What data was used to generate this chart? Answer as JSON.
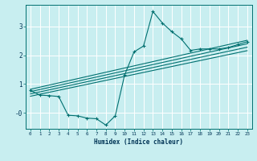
{
  "xlabel": "Humidex (Indice chaleur)",
  "bg_color": "#c8eef0",
  "line_color": "#007070",
  "grid_color": "#ffffff",
  "xlim": [
    -0.5,
    23.5
  ],
  "ylim": [
    -0.55,
    3.75
  ],
  "yticks": [
    0,
    1,
    2,
    3
  ],
  "ytick_labels": [
    "-0",
    "1",
    "2",
    "3"
  ],
  "xticks": [
    0,
    1,
    2,
    3,
    4,
    5,
    6,
    7,
    8,
    9,
    10,
    11,
    12,
    13,
    14,
    15,
    16,
    17,
    18,
    19,
    20,
    21,
    22,
    23
  ],
  "curve_x": [
    0,
    1,
    2,
    3,
    4,
    5,
    6,
    7,
    8,
    9,
    10,
    11,
    12,
    13,
    14,
    15,
    16,
    17,
    18,
    19,
    20,
    21,
    22,
    23
  ],
  "curve_y": [
    0.78,
    0.62,
    0.6,
    0.57,
    -0.08,
    -0.1,
    -0.18,
    -0.2,
    -0.42,
    -0.1,
    1.32,
    2.12,
    2.32,
    3.52,
    3.12,
    2.82,
    2.57,
    2.17,
    2.22,
    2.22,
    2.22,
    2.27,
    2.37,
    2.47
  ],
  "lines": [
    {
      "x": [
        0,
        23
      ],
      "y": [
        0.82,
        2.52
      ]
    },
    {
      "x": [
        0,
        23
      ],
      "y": [
        0.74,
        2.4
      ]
    },
    {
      "x": [
        0,
        23
      ],
      "y": [
        0.66,
        2.28
      ]
    },
    {
      "x": [
        0,
        23
      ],
      "y": [
        0.58,
        2.16
      ]
    }
  ]
}
